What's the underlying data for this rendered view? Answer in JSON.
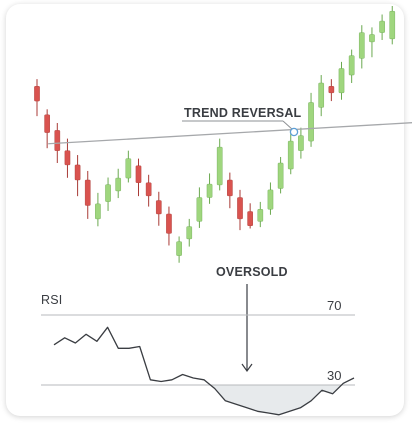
{
  "chart_data": {
    "type": "candlestick",
    "up_color": "#9fd67e",
    "up_border": "#6aa84f",
    "down_color": "#d9534f",
    "down_border": "#a83a36",
    "price_range": [
      0,
      100
    ],
    "candles": [
      {
        "o": 70.7,
        "h": 73.3,
        "l": 59.8,
        "c": 65.3
      },
      {
        "o": 60.3,
        "h": 62.3,
        "l": 48.1,
        "c": 53.8
      },
      {
        "o": 54.6,
        "h": 57.3,
        "l": 42.7,
        "c": 47.2
      },
      {
        "o": 47.2,
        "h": 51.6,
        "l": 37.3,
        "c": 42.0
      },
      {
        "o": 42.0,
        "h": 45.6,
        "l": 30.6,
        "c": 36.5
      },
      {
        "o": 36.5,
        "h": 39.8,
        "l": 22.3,
        "c": 27.2
      },
      {
        "o": 22.3,
        "h": 31.8,
        "l": 19.6,
        "c": 27.8
      },
      {
        "o": 28.6,
        "h": 37.4,
        "l": 25.2,
        "c": 34.8
      },
      {
        "o": 32.5,
        "h": 40.6,
        "l": 29.9,
        "c": 37.2
      },
      {
        "o": 37.2,
        "h": 47.2,
        "l": 35.6,
        "c": 44.3
      },
      {
        "o": 41.7,
        "h": 44.3,
        "l": 30.6,
        "c": 35.5
      },
      {
        "o": 35.5,
        "h": 38.4,
        "l": 26.8,
        "c": 30.7
      },
      {
        "o": 29.0,
        "h": 32.2,
        "l": 19.8,
        "c": 24.1
      },
      {
        "o": 24.1,
        "h": 26.8,
        "l": 12.6,
        "c": 17.0
      },
      {
        "o": 8.9,
        "h": 15.9,
        "l": 6.3,
        "c": 14.0
      },
      {
        "o": 15.0,
        "h": 22.3,
        "l": 12.2,
        "c": 19.5
      },
      {
        "o": 21.4,
        "h": 33.8,
        "l": 19.0,
        "c": 30.1
      },
      {
        "o": 30.1,
        "h": 38.9,
        "l": 27.8,
        "c": 35.0
      },
      {
        "o": 34.7,
        "h": 51.6,
        "l": 32.7,
        "c": 48.5
      },
      {
        "o": 36.5,
        "h": 39.2,
        "l": 26.2,
        "c": 30.7
      },
      {
        "o": 30.1,
        "h": 32.9,
        "l": 18.2,
        "c": 22.3
      },
      {
        "o": 25.0,
        "h": 28.0,
        "l": 18.8,
        "c": 19.8
      },
      {
        "o": 21.4,
        "h": 28.5,
        "l": 19.3,
        "c": 25.8
      },
      {
        "o": 25.8,
        "h": 35.6,
        "l": 23.8,
        "c": 32.9
      },
      {
        "o": 33.4,
        "h": 44.9,
        "l": 31.6,
        "c": 42.7
      },
      {
        "o": 40.5,
        "h": 53.6,
        "l": 38.6,
        "c": 50.7
      },
      {
        "o": 47.2,
        "h": 55.6,
        "l": 44.3,
        "c": 52.7
      },
      {
        "o": 50.7,
        "h": 68.3,
        "l": 48.6,
        "c": 64.8
      },
      {
        "o": 63.0,
        "h": 74.8,
        "l": 59.8,
        "c": 71.9
      },
      {
        "o": 70.7,
        "h": 73.3,
        "l": 65.3,
        "c": 68.3
      },
      {
        "o": 68.3,
        "h": 79.6,
        "l": 65.8,
        "c": 77.2
      },
      {
        "o": 74.8,
        "h": 84.1,
        "l": 71.9,
        "c": 81.9
      },
      {
        "o": 80.9,
        "h": 93.0,
        "l": 77.2,
        "c": 90.3
      },
      {
        "o": 86.9,
        "h": 92.2,
        "l": 81.3,
        "c": 89.6
      },
      {
        "o": 90.3,
        "h": 96.9,
        "l": 87.6,
        "c": 94.5
      },
      {
        "o": 88.0,
        "h": 100.0,
        "l": 86.0,
        "c": 98.1
      }
    ],
    "trendline": {
      "from": [
        0,
        49.5
      ],
      "to": [
        35,
        57.0
      ]
    },
    "annotations": {
      "trend_reversal": "TREND REVERSAL",
      "oversold": "OVERSOLD"
    },
    "rsi": {
      "label": "RSI",
      "levels": [
        70,
        30
      ],
      "level_labels": [
        "70",
        "30"
      ],
      "range": [
        0,
        100
      ],
      "values": [
        53,
        57,
        54,
        59,
        55,
        63,
        51,
        51,
        52,
        33,
        32,
        33,
        36,
        34,
        33,
        28,
        21,
        19,
        17,
        15,
        14,
        13,
        15,
        17,
        21,
        27,
        25,
        31,
        34
      ],
      "fill_color": "#e7eaec"
    }
  }
}
